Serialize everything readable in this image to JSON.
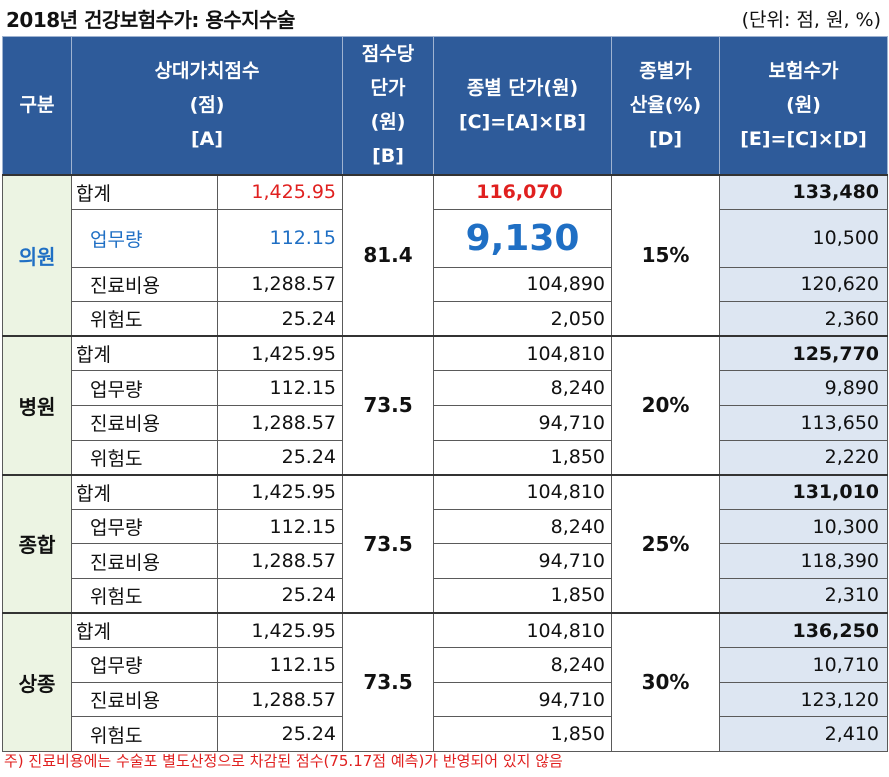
{
  "title": "2018년 건강보험수가: 용수지수술",
  "unit": "(단위: 점, 원, %)",
  "headers": {
    "category": "구분",
    "points": [
      "상대가치점수",
      "(점)",
      "[A]"
    ],
    "unit_price": [
      "점수당",
      "단가",
      "(원)",
      "[B]"
    ],
    "type_price": [
      "종별 단가(원)",
      "[C]=[A]×[B]"
    ],
    "markup": [
      "종별가",
      "산율(%)",
      "[D]"
    ],
    "fee": [
      "보험수가",
      "(원)",
      "[E]=[C]×[D]"
    ]
  },
  "groups": [
    {
      "name": "의원",
      "unit_price": "81.4",
      "markup": "15%",
      "rows": [
        {
          "label": "합계",
          "points": "1,425.95",
          "price": "116,070",
          "fee": "133,480"
        },
        {
          "label": "업무량",
          "points": "112.15",
          "price": "9,130",
          "fee": "10,500"
        },
        {
          "label": "진료비용",
          "points": "1,288.57",
          "price": "104,890",
          "fee": "120,620"
        },
        {
          "label": "위험도",
          "points": "25.24",
          "price": "2,050",
          "fee": "2,360"
        }
      ]
    },
    {
      "name": "병원",
      "unit_price": "73.5",
      "markup": "20%",
      "rows": [
        {
          "label": "합계",
          "points": "1,425.95",
          "price": "104,810",
          "fee": "125,770"
        },
        {
          "label": "업무량",
          "points": "112.15",
          "price": "8,240",
          "fee": "9,890"
        },
        {
          "label": "진료비용",
          "points": "1,288.57",
          "price": "94,710",
          "fee": "113,650"
        },
        {
          "label": "위험도",
          "points": "25.24",
          "price": "1,850",
          "fee": "2,220"
        }
      ]
    },
    {
      "name": "종합",
      "unit_price": "73.5",
      "markup": "25%",
      "rows": [
        {
          "label": "합계",
          "points": "1,425.95",
          "price": "104,810",
          "fee": "131,010"
        },
        {
          "label": "업무량",
          "points": "112.15",
          "price": "8,240",
          "fee": "10,300"
        },
        {
          "label": "진료비용",
          "points": "1,288.57",
          "price": "94,710",
          "fee": "118,390"
        },
        {
          "label": "위험도",
          "points": "25.24",
          "price": "1,850",
          "fee": "2,310"
        }
      ]
    },
    {
      "name": "상종",
      "unit_price": "73.5",
      "markup": "30%",
      "rows": [
        {
          "label": "합계",
          "points": "1,425.95",
          "price": "104,810",
          "fee": "136,250"
        },
        {
          "label": "업무량",
          "points": "112.15",
          "price": "8,240",
          "fee": "10,710"
        },
        {
          "label": "진료비용",
          "points": "1,288.57",
          "price": "94,710",
          "fee": "123,120"
        },
        {
          "label": "위험도",
          "points": "25.24",
          "price": "1,850",
          "fee": "2,410"
        }
      ]
    }
  ],
  "footnote": "주) 진료비용에는 수술포 별도산정으로 차감된 점수(75.17점 예측)가 반영되어 있지 않음",
  "colors": {
    "header_bg": "#2e5b9a",
    "group_bg": "#ecf4e3",
    "fee_bg": "#dde6f2",
    "highlight_red": "#e0201f",
    "highlight_blue": "#1f6fc4"
  }
}
